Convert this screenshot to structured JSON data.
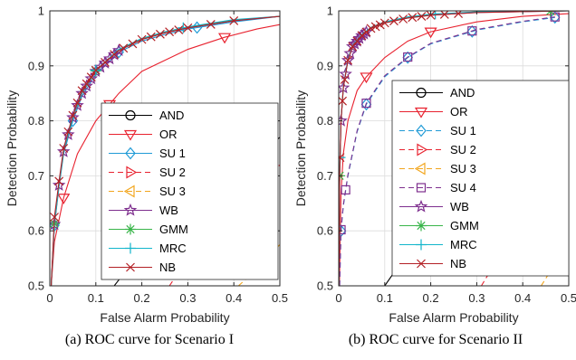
{
  "chart_data": [
    {
      "type": "line",
      "caption": "(a) ROC curve for Scenario I",
      "xlabel": "False Alarm Probability",
      "ylabel": "Detection Probability",
      "xlim": [
        0,
        0.5
      ],
      "ylim": [
        0.5,
        1
      ],
      "xticks": [
        "0",
        "0.1",
        "0.2",
        "0.3",
        "0.4",
        "0.5"
      ],
      "yticks": [
        "0.5",
        "0.6",
        "0.7",
        "0.8",
        "0.9",
        "1"
      ],
      "grid": true,
      "legend_position": "right",
      "series": [
        {
          "name": "AND",
          "color": "#000000",
          "marker": "circle",
          "dashed": false,
          "x": [
            0.14,
            0.2,
            0.3,
            0.375,
            0.45,
            0.5
          ],
          "y": [
            0.5,
            0.565,
            0.64,
            0.687,
            0.735,
            0.77
          ],
          "marker_x": [
            0.375
          ]
        },
        {
          "name": "OR",
          "color": "#e8222f",
          "marker": "triangle-down",
          "dashed": false,
          "x": [
            0.003,
            0.01,
            0.03,
            0.06,
            0.1,
            0.15,
            0.2,
            0.3,
            0.38,
            0.45,
            0.5
          ],
          "y": [
            0.5,
            0.58,
            0.66,
            0.74,
            0.8,
            0.85,
            0.89,
            0.93,
            0.952,
            0.967,
            0.975
          ],
          "marker_x": [
            0.03,
            0.13,
            0.38
          ]
        },
        {
          "name": "SU 1",
          "color": "#1f9ad6",
          "marker": "diamond",
          "dashed": false,
          "x": [
            0.003,
            0.01,
            0.02,
            0.03,
            0.05,
            0.07,
            0.1,
            0.15,
            0.2,
            0.25,
            0.3,
            0.4,
            0.5
          ],
          "y": [
            0.5,
            0.61,
            0.68,
            0.74,
            0.8,
            0.845,
            0.885,
            0.925,
            0.945,
            0.957,
            0.967,
            0.98,
            0.99
          ],
          "marker_x": [
            0.01,
            0.05,
            0.15,
            0.32
          ]
        },
        {
          "name": "SU 2",
          "color": "#e8222f",
          "marker": "triangle-right",
          "dashed": true,
          "x": [
            0.26,
            0.3,
            0.35,
            0.4,
            0.45,
            0.5
          ],
          "y": [
            0.5,
            0.55,
            0.6,
            0.64,
            0.68,
            0.72
          ],
          "marker_x": [
            0.31
          ]
        },
        {
          "name": "SU 3",
          "color": "#f2a51c",
          "marker": "triangle-left",
          "dashed": true,
          "x": [
            0.41,
            0.45,
            0.5
          ],
          "y": [
            0.5,
            0.53,
            0.575
          ],
          "marker_x": []
        },
        {
          "name": "WB",
          "color": "#7e2f8e",
          "marker": "star",
          "dashed": false,
          "x": [
            0.003,
            0.01,
            0.02,
            0.03,
            0.05,
            0.07,
            0.1,
            0.15,
            0.2,
            0.25,
            0.3,
            0.4,
            0.5
          ],
          "y": [
            0.5,
            0.612,
            0.683,
            0.744,
            0.806,
            0.85,
            0.89,
            0.928,
            0.948,
            0.96,
            0.969,
            0.982,
            0.99
          ],
          "marker_x": [
            0.01,
            0.02,
            0.03,
            0.04,
            0.05,
            0.06,
            0.07,
            0.08,
            0.09,
            0.1,
            0.11,
            0.12,
            0.13,
            0.14,
            0.15
          ]
        },
        {
          "name": "GMM",
          "color": "#39b54a",
          "marker": "asterisk",
          "dashed": false,
          "x": [
            0.003,
            0.01,
            0.02,
            0.03,
            0.05,
            0.07,
            0.1,
            0.15,
            0.2,
            0.25,
            0.3,
            0.4,
            0.5
          ],
          "y": [
            0.5,
            0.613,
            0.684,
            0.745,
            0.807,
            0.851,
            0.891,
            0.929,
            0.949,
            0.961,
            0.97,
            0.983,
            0.99
          ],
          "marker_x": [
            0.01,
            0.1
          ]
        },
        {
          "name": "MRC",
          "color": "#12b5cb",
          "marker": "plus",
          "dashed": false,
          "x": [
            0.003,
            0.01,
            0.02,
            0.03,
            0.05,
            0.07,
            0.1,
            0.15,
            0.2,
            0.25,
            0.3,
            0.4,
            0.5
          ],
          "y": [
            0.5,
            0.614,
            0.685,
            0.746,
            0.808,
            0.852,
            0.892,
            0.93,
            0.95,
            0.962,
            0.971,
            0.984,
            0.99
          ],
          "marker_x": [
            0.1,
            0.29
          ]
        },
        {
          "name": "NB",
          "color": "#b32025",
          "marker": "x",
          "dashed": false,
          "x": [
            0.003,
            0.01,
            0.02,
            0.03,
            0.05,
            0.07,
            0.1,
            0.15,
            0.2,
            0.25,
            0.3,
            0.4,
            0.5
          ],
          "y": [
            0.5,
            0.625,
            0.69,
            0.75,
            0.81,
            0.855,
            0.892,
            0.928,
            0.948,
            0.96,
            0.969,
            0.982,
            0.99
          ],
          "marker_x": [
            0.01,
            0.02,
            0.03,
            0.04,
            0.05,
            0.06,
            0.07,
            0.08,
            0.09,
            0.1,
            0.12,
            0.14,
            0.16,
            0.18,
            0.2,
            0.22,
            0.24,
            0.26,
            0.28,
            0.3,
            0.35,
            0.4
          ]
        }
      ]
    },
    {
      "type": "line",
      "caption": "(b) ROC curve for Scenario II",
      "xlabel": "False Alarm Probability",
      "ylabel": "Detection Probability",
      "xlim": [
        0,
        0.5
      ],
      "ylim": [
        0.5,
        1
      ],
      "xticks": [
        "0",
        "0.1",
        "0.2",
        "0.3",
        "0.4",
        "0.5"
      ],
      "yticks": [
        "0.5",
        "0.6",
        "0.7",
        "0.8",
        "0.9",
        "1"
      ],
      "grid": true,
      "legend_position": "right",
      "series": [
        {
          "name": "AND",
          "color": "#000000",
          "marker": "circle",
          "dashed": false,
          "x": [
            0.1,
            0.2,
            0.3,
            0.4,
            0.5
          ],
          "y": [
            0.5,
            0.62,
            0.71,
            0.775,
            0.83
          ],
          "marker_x": [
            0.4
          ]
        },
        {
          "name": "OR",
          "color": "#e8222f",
          "marker": "triangle-down",
          "dashed": false,
          "x": [
            0.0015,
            0.005,
            0.01,
            0.02,
            0.04,
            0.06,
            0.1,
            0.15,
            0.2,
            0.3,
            0.4,
            0.5
          ],
          "y": [
            0.5,
            0.67,
            0.74,
            0.8,
            0.855,
            0.88,
            0.915,
            0.945,
            0.962,
            0.98,
            0.99,
            0.995
          ],
          "marker_x": [
            0.06,
            0.2
          ]
        },
        {
          "name": "SU 1",
          "color": "#1f9ad6",
          "marker": "diamond",
          "dashed": true,
          "x": [
            0.002,
            0.005,
            0.01,
            0.02,
            0.04,
            0.06,
            0.1,
            0.15,
            0.2,
            0.3,
            0.4,
            0.47
          ],
          "y": [
            0.5,
            0.6,
            0.645,
            0.7,
            0.78,
            0.83,
            0.88,
            0.915,
            0.94,
            0.965,
            0.98,
            0.988
          ],
          "marker_x": [
            0.005,
            0.06,
            0.15,
            0.29,
            0.47
          ]
        },
        {
          "name": "SU 2",
          "color": "#e8222f",
          "marker": "triangle-right",
          "dashed": true,
          "x": [
            0.31,
            0.35,
            0.4,
            0.45,
            0.5
          ],
          "y": [
            0.5,
            0.555,
            0.62,
            0.67,
            0.72
          ],
          "marker_x": [
            0.47
          ]
        },
        {
          "name": "SU 3",
          "color": "#f2a51c",
          "marker": "triangle-left",
          "dashed": true,
          "x": [
            0.44,
            0.47,
            0.5
          ],
          "y": [
            0.5,
            0.54,
            0.58
          ],
          "marker_x": [
            0.47
          ]
        },
        {
          "name": "SU 4",
          "color": "#7e2f8e",
          "marker": "square",
          "dashed": true,
          "x": [
            0.002,
            0.005,
            0.01,
            0.02,
            0.04,
            0.06,
            0.1,
            0.15,
            0.2,
            0.3,
            0.4,
            0.47
          ],
          "y": [
            0.5,
            0.602,
            0.647,
            0.702,
            0.782,
            0.832,
            0.882,
            0.916,
            0.941,
            0.966,
            0.981,
            0.989
          ],
          "marker_x": [
            0.005,
            0.015,
            0.06,
            0.15,
            0.29,
            0.47
          ]
        },
        {
          "name": "WB",
          "color": "#7e2f8e",
          "marker": "star",
          "dashed": false,
          "x": [
            0.0005,
            0.002,
            0.005,
            0.01,
            0.02,
            0.03,
            0.05,
            0.07,
            0.1,
            0.15,
            0.2,
            0.3,
            0.5
          ],
          "y": [
            0.5,
            0.7,
            0.8,
            0.86,
            0.91,
            0.935,
            0.955,
            0.968,
            0.978,
            0.987,
            0.992,
            0.997,
            1.0
          ],
          "marker_x": [
            0.005,
            0.01,
            0.015,
            0.02,
            0.025,
            0.03,
            0.035,
            0.04,
            0.045,
            0.05,
            0.055,
            0.06
          ]
        },
        {
          "name": "GMM",
          "color": "#39b54a",
          "marker": "asterisk",
          "dashed": false,
          "x": [
            0.0005,
            0.002,
            0.005,
            0.01,
            0.02,
            0.03,
            0.05,
            0.07,
            0.1,
            0.15,
            0.2,
            0.3,
            0.5
          ],
          "y": [
            0.5,
            0.7,
            0.8,
            0.861,
            0.911,
            0.936,
            0.956,
            0.969,
            0.979,
            0.988,
            0.993,
            0.998,
            1.0
          ],
          "marker_x": [
            0.002,
            0.46
          ]
        },
        {
          "name": "MRC",
          "color": "#12b5cb",
          "marker": "plus",
          "dashed": false,
          "x": [
            0.0005,
            0.002,
            0.005,
            0.01,
            0.02,
            0.03,
            0.05,
            0.07,
            0.1,
            0.15,
            0.2,
            0.3,
            0.5
          ],
          "y": [
            0.5,
            0.7,
            0.8,
            0.862,
            0.912,
            0.937,
            0.957,
            0.97,
            0.98,
            0.989,
            0.994,
            0.998,
            1.0
          ],
          "marker_x": [
            0.003,
            0.21
          ]
        },
        {
          "name": "NB",
          "color": "#b32025",
          "marker": "x",
          "dashed": false,
          "x": [
            0.0005,
            0.002,
            0.005,
            0.01,
            0.02,
            0.03,
            0.05,
            0.07,
            0.1,
            0.15,
            0.2,
            0.3,
            0.5
          ],
          "y": [
            0.5,
            0.7,
            0.8,
            0.86,
            0.91,
            0.935,
            0.955,
            0.968,
            0.978,
            0.987,
            0.992,
            0.997,
            1.0
          ],
          "marker_x": [
            0.003,
            0.008,
            0.013,
            0.02,
            0.03,
            0.04,
            0.05,
            0.06,
            0.07,
            0.08,
            0.09,
            0.1,
            0.12,
            0.14,
            0.16,
            0.18,
            0.2,
            0.23,
            0.26
          ]
        }
      ]
    }
  ]
}
